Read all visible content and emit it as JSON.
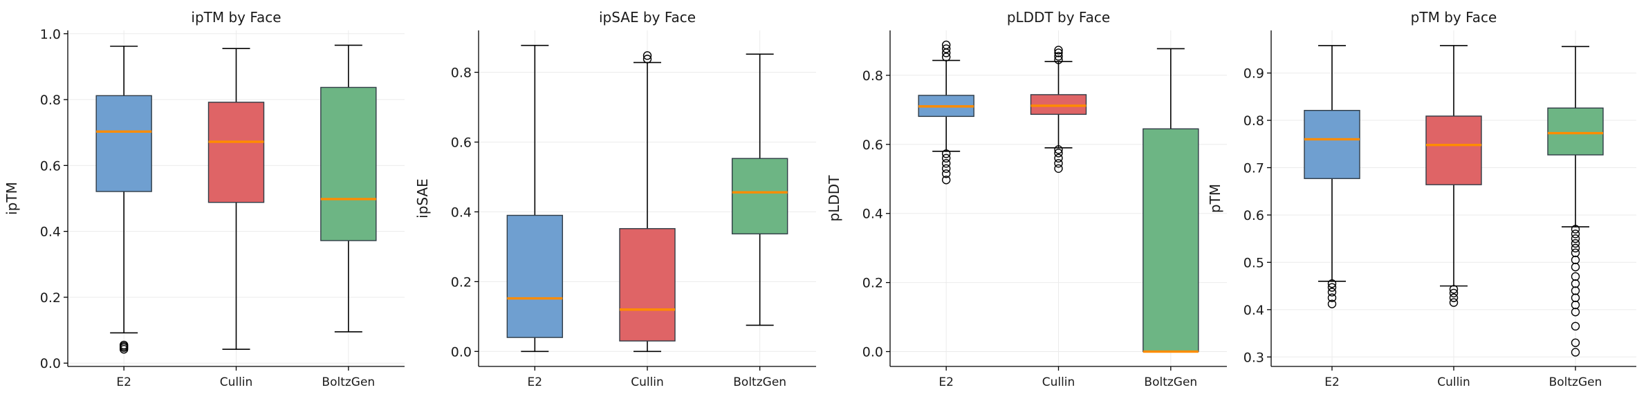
{
  "chart_data": [
    {
      "type": "box",
      "title": "ipTM by Face",
      "ylabel": "ipTM",
      "ylim": [
        -0.01,
        1.01
      ],
      "yticks": [
        0.0,
        0.2,
        0.4,
        0.6,
        0.8,
        1.0
      ],
      "ytick_labels": [
        "0.0",
        "0.2",
        "0.4",
        "0.6",
        "0.8",
        "1.0"
      ],
      "categories": [
        "E2",
        "Cullin",
        "BoltzGen"
      ],
      "colors": [
        "#6f9fd0",
        "#df6466",
        "#6db584"
      ],
      "boxes": [
        {
          "whislo": 0.092,
          "q1": 0.521,
          "med": 0.703,
          "q3": 0.812,
          "whishi": 0.962,
          "fliers": [
            0.042,
            0.047,
            0.051,
            0.055
          ]
        },
        {
          "whislo": 0.042,
          "q1": 0.488,
          "med": 0.672,
          "q3": 0.792,
          "whishi": 0.955,
          "fliers": []
        },
        {
          "whislo": 0.095,
          "q1": 0.372,
          "med": 0.498,
          "q3": 0.837,
          "whishi": 0.965,
          "fliers": []
        }
      ]
    },
    {
      "type": "box",
      "title": "ipSAE by Face",
      "ylabel": "ipSAE",
      "ylim": [
        -0.043,
        0.92
      ],
      "yticks": [
        0.0,
        0.2,
        0.4,
        0.6,
        0.8
      ],
      "ytick_labels": [
        "0.0",
        "0.2",
        "0.4",
        "0.6",
        "0.8"
      ],
      "categories": [
        "E2",
        "Cullin",
        "BoltzGen"
      ],
      "colors": [
        "#6f9fd0",
        "#df6466",
        "#6db584"
      ],
      "boxes": [
        {
          "whislo": 0.0,
          "q1": 0.04,
          "med": 0.152,
          "q3": 0.39,
          "whishi": 0.877,
          "fliers": []
        },
        {
          "whislo": 0.0,
          "q1": 0.03,
          "med": 0.12,
          "q3": 0.352,
          "whishi": 0.828,
          "fliers": [
            0.838,
            0.848
          ]
        },
        {
          "whislo": 0.075,
          "q1": 0.337,
          "med": 0.456,
          "q3": 0.553,
          "whishi": 0.852,
          "fliers": []
        }
      ]
    },
    {
      "type": "box",
      "title": "pLDDT by Face",
      "ylabel": "pLDDT",
      "ylim": [
        -0.043,
        0.93
      ],
      "yticks": [
        0.0,
        0.2,
        0.4,
        0.6,
        0.8
      ],
      "ytick_labels": [
        "0.0",
        "0.2",
        "0.4",
        "0.6",
        "0.8"
      ],
      "categories": [
        "E2",
        "Cullin",
        "BoltzGen"
      ],
      "colors": [
        "#6f9fd0",
        "#df6466",
        "#6db584"
      ],
      "boxes": [
        {
          "whislo": 0.58,
          "q1": 0.681,
          "med": 0.71,
          "q3": 0.742,
          "whishi": 0.843,
          "fliers": [
            0.497,
            0.515,
            0.53,
            0.545,
            0.56,
            0.573,
            0.853,
            0.865,
            0.877,
            0.888
          ]
        },
        {
          "whislo": 0.59,
          "q1": 0.687,
          "med": 0.712,
          "q3": 0.744,
          "whishi": 0.84,
          "fliers": [
            0.53,
            0.545,
            0.56,
            0.575,
            0.585,
            0.845,
            0.855,
            0.865,
            0.873
          ]
        },
        {
          "whislo": 0.0,
          "q1": 0.0,
          "med": 0.0,
          "q3": 0.645,
          "whishi": 0.877,
          "fliers": []
        }
      ]
    },
    {
      "type": "box",
      "title": "pTM by Face",
      "ylabel": "pTM",
      "ylim": [
        0.28,
        0.99
      ],
      "yticks": [
        0.3,
        0.4,
        0.5,
        0.6,
        0.7,
        0.8,
        0.9
      ],
      "ytick_labels": [
        "0.3",
        "0.4",
        "0.5",
        "0.6",
        "0.7",
        "0.8",
        "0.9"
      ],
      "categories": [
        "E2",
        "Cullin",
        "BoltzGen"
      ],
      "colors": [
        "#6f9fd0",
        "#df6466",
        "#6db584"
      ],
      "boxes": [
        {
          "whislo": 0.46,
          "q1": 0.677,
          "med": 0.76,
          "q3": 0.821,
          "whishi": 0.958,
          "fliers": [
            0.412,
            0.425,
            0.437,
            0.447,
            0.455
          ]
        },
        {
          "whislo": 0.45,
          "q1": 0.664,
          "med": 0.748,
          "q3": 0.809,
          "whishi": 0.958,
          "fliers": [
            0.415,
            0.425,
            0.435,
            0.443
          ]
        },
        {
          "whislo": 0.575,
          "q1": 0.727,
          "med": 0.773,
          "q3": 0.826,
          "whishi": 0.956,
          "fliers": [
            0.31,
            0.33,
            0.365,
            0.395,
            0.41,
            0.425,
            0.44,
            0.455,
            0.47,
            0.49,
            0.505,
            0.52,
            0.53,
            0.54,
            0.55,
            0.56,
            0.57
          ]
        }
      ]
    }
  ]
}
